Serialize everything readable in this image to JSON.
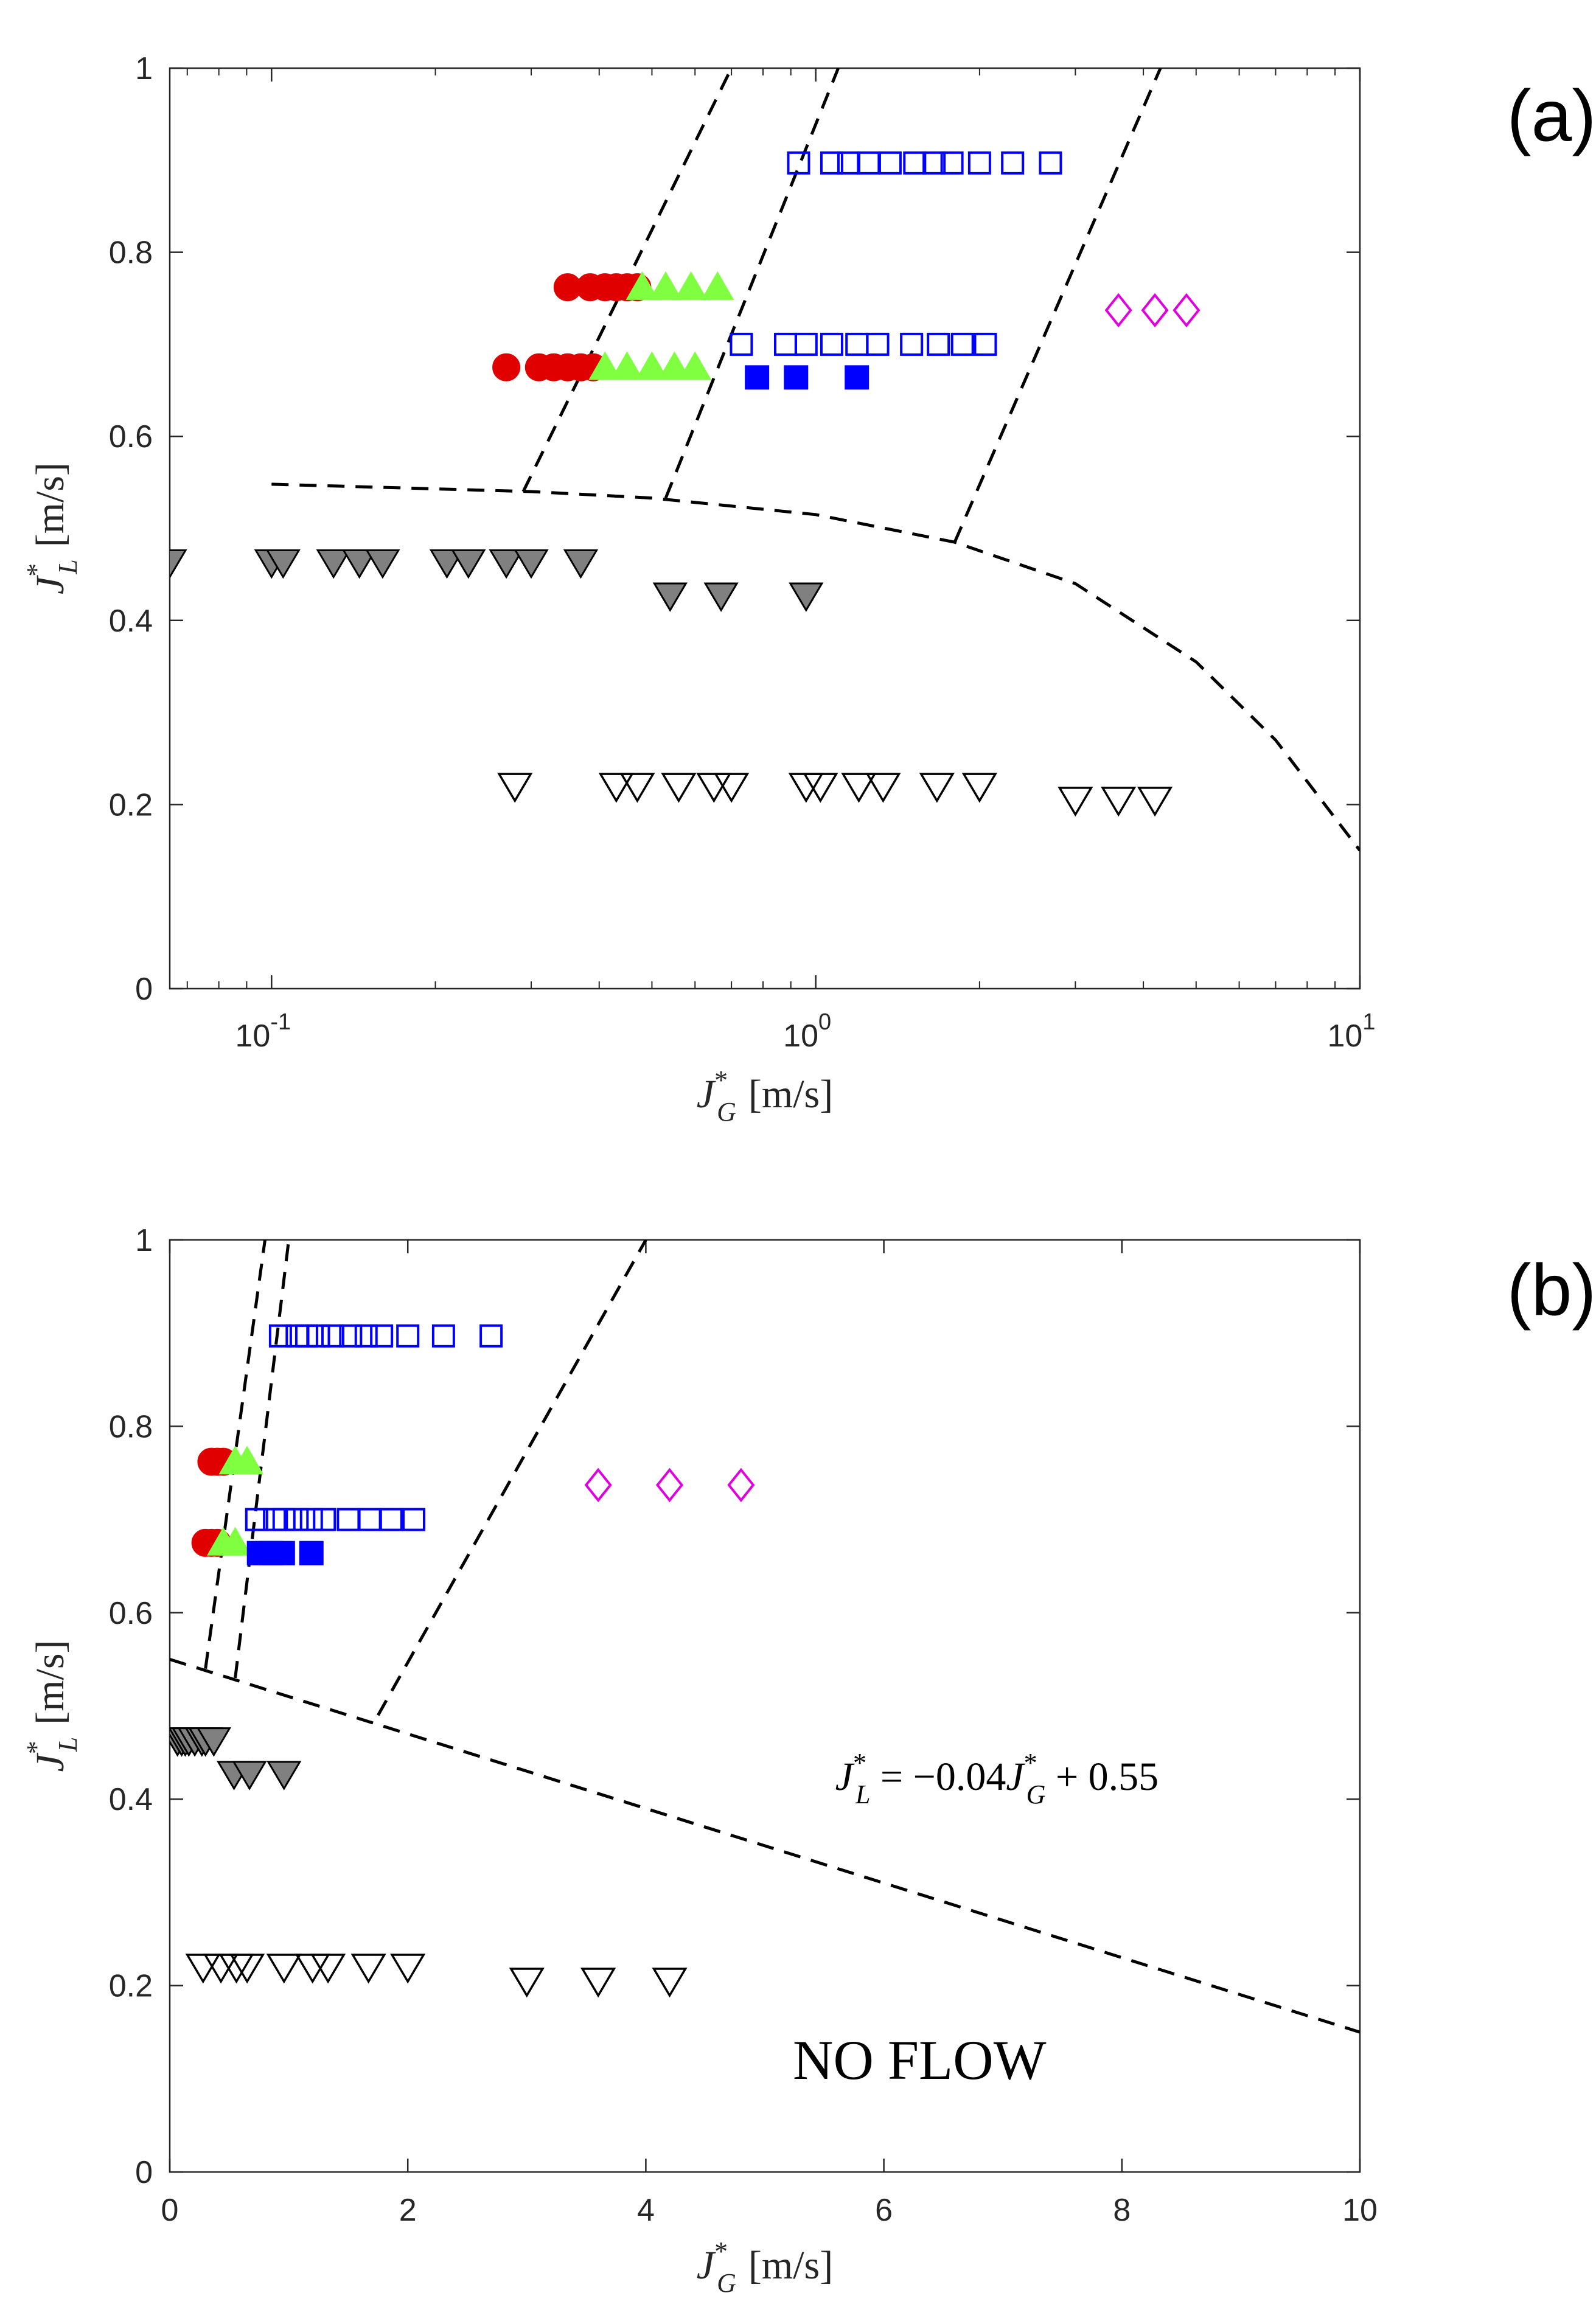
{
  "chart_data": [
    {
      "type": "scatter",
      "panel_label": "(a)",
      "xscale": "log",
      "xlim": [
        0.065,
        10
      ],
      "ylim": [
        0,
        1
      ],
      "xticks": [
        0.1,
        1,
        10
      ],
      "xtick_labels": [
        {
          "base": "10",
          "exp": "-1"
        },
        {
          "base": "10",
          "exp": "0"
        },
        {
          "base": "10",
          "exp": "1"
        }
      ],
      "yticks": [
        0,
        0.2,
        0.4,
        0.6,
        0.8,
        1
      ],
      "ytick_labels": [
        "0",
        "0.2",
        "0.4",
        "0.6",
        "0.8",
        "1"
      ],
      "xlabel": {
        "sym": "J",
        "sup": "*",
        "sub": "G",
        "unit": "[m/s]"
      },
      "ylabel": {
        "sym": "J",
        "sup": "*",
        "sub": "L",
        "unit": "[m/s]"
      },
      "series": [
        {
          "name": "red-circles",
          "marker": "circle-filled",
          "color": "#e00000",
          "points": [
            [
              0.27,
              0.675
            ],
            [
              0.31,
              0.675
            ],
            [
              0.33,
              0.675
            ],
            [
              0.35,
              0.675
            ],
            [
              0.37,
              0.675
            ],
            [
              0.39,
              0.675
            ],
            [
              0.35,
              0.762
            ],
            [
              0.385,
              0.762
            ],
            [
              0.41,
              0.762
            ],
            [
              0.43,
              0.762
            ],
            [
              0.45,
              0.762
            ],
            [
              0.47,
              0.762
            ]
          ]
        },
        {
          "name": "green-triangles",
          "marker": "triangle-up-filled",
          "color": "#7fff3f",
          "points": [
            [
              0.41,
              0.675
            ],
            [
              0.45,
              0.675
            ],
            [
              0.5,
              0.675
            ],
            [
              0.55,
              0.675
            ],
            [
              0.6,
              0.675
            ],
            [
              0.48,
              0.762
            ],
            [
              0.53,
              0.762
            ],
            [
              0.59,
              0.762
            ],
            [
              0.66,
              0.762
            ]
          ]
        },
        {
          "name": "blue-open-squares",
          "marker": "square-open",
          "color": "#0000ff",
          "points": [
            [
              0.93,
              0.897
            ],
            [
              1.07,
              0.897
            ],
            [
              1.15,
              0.897
            ],
            [
              1.25,
              0.897
            ],
            [
              1.37,
              0.897
            ],
            [
              1.52,
              0.897
            ],
            [
              1.65,
              0.897
            ],
            [
              1.78,
              0.897
            ],
            [
              2.0,
              0.897
            ],
            [
              2.3,
              0.897
            ],
            [
              2.7,
              0.897
            ],
            [
              0.73,
              0.7
            ],
            [
              0.88,
              0.7
            ],
            [
              0.96,
              0.7
            ],
            [
              1.07,
              0.7
            ],
            [
              1.19,
              0.7
            ],
            [
              1.3,
              0.7
            ],
            [
              1.5,
              0.7
            ],
            [
              1.68,
              0.7
            ],
            [
              1.86,
              0.7
            ],
            [
              2.05,
              0.7
            ]
          ]
        },
        {
          "name": "blue-filled-squares",
          "marker": "square-filled",
          "color": "#0000ff",
          "points": [
            [
              0.78,
              0.664
            ],
            [
              0.92,
              0.664
            ],
            [
              1.19,
              0.664
            ]
          ]
        },
        {
          "name": "magenta-diamonds",
          "marker": "diamond-open",
          "color": "#e000e0",
          "points": [
            [
              3.6,
              0.737
            ],
            [
              4.2,
              0.737
            ],
            [
              4.8,
              0.737
            ]
          ]
        },
        {
          "name": "gray-triangles",
          "marker": "triangle-down-filled",
          "color": "#808080",
          "points": [
            [
              0.065,
              0.463
            ],
            [
              0.1,
              0.463
            ],
            [
              0.105,
              0.463
            ],
            [
              0.13,
              0.463
            ],
            [
              0.145,
              0.463
            ],
            [
              0.16,
              0.463
            ],
            [
              0.21,
              0.463
            ],
            [
              0.23,
              0.463
            ],
            [
              0.27,
              0.463
            ],
            [
              0.3,
              0.463
            ],
            [
              0.37,
              0.463
            ],
            [
              0.54,
              0.427
            ],
            [
              0.67,
              0.427
            ],
            [
              0.96,
              0.427
            ]
          ]
        },
        {
          "name": "open-triangles",
          "marker": "triangle-down-open",
          "color": "#000000",
          "points": [
            [
              0.28,
              0.22
            ],
            [
              0.43,
              0.22
            ],
            [
              0.47,
              0.22
            ],
            [
              0.56,
              0.22
            ],
            [
              0.65,
              0.22
            ],
            [
              0.7,
              0.22
            ],
            [
              0.96,
              0.22
            ],
            [
              1.02,
              0.22
            ],
            [
              1.2,
              0.22
            ],
            [
              1.33,
              0.22
            ],
            [
              1.67,
              0.22
            ],
            [
              2.0,
              0.22
            ],
            [
              3.0,
              0.205
            ],
            [
              3.6,
              0.205
            ],
            [
              4.2,
              0.205
            ]
          ]
        }
      ],
      "lines": [
        {
          "name": "no-flow-boundary",
          "style": "dashed",
          "points": [
            [
              0.1,
              0.548
            ],
            [
              0.3,
              0.54
            ],
            [
              0.5,
              0.533
            ],
            [
              1,
              0.515
            ],
            [
              1.8,
              0.485
            ],
            [
              3,
              0.44
            ],
            [
              5,
              0.355
            ],
            [
              7,
              0.27
            ],
            [
              10,
              0.15
            ]
          ]
        },
        {
          "name": "regime-boundary-1",
          "style": "dashed",
          "points": [
            [
              0.29,
              0.54
            ],
            [
              0.7,
              1.0
            ]
          ]
        },
        {
          "name": "regime-boundary-2",
          "style": "dashed",
          "points": [
            [
              0.53,
              0.533
            ],
            [
              1.1,
              1.0
            ]
          ]
        },
        {
          "name": "regime-boundary-3",
          "style": "dashed",
          "points": [
            [
              1.8,
              0.485
            ],
            [
              4.3,
              1.0
            ]
          ]
        }
      ]
    },
    {
      "type": "scatter",
      "panel_label": "(b)",
      "xscale": "linear",
      "xlim": [
        0,
        10
      ],
      "ylim": [
        0,
        1
      ],
      "xticks": [
        0,
        2,
        4,
        6,
        8,
        10
      ],
      "xtick_labels": [
        "0",
        "2",
        "4",
        "6",
        "8",
        "10"
      ],
      "yticks": [
        0,
        0.2,
        0.4,
        0.6,
        0.8,
        1
      ],
      "ytick_labels": [
        "0",
        "0.2",
        "0.4",
        "0.6",
        "0.8",
        "1"
      ],
      "xlabel": {
        "sym": "J",
        "sup": "*",
        "sub": "G",
        "unit": "[m/s]"
      },
      "ylabel": {
        "sym": "J",
        "sup": "*",
        "sub": "L",
        "unit": "[m/s]"
      },
      "annotations": [
        {
          "name": "fit-equation",
          "text": {
            "lhs_sym": "J",
            "lhs_sub": "L",
            "mid": " = −0.04",
            "rhs_sym": "J",
            "rhs_sub": "G",
            "tail": " + 0.55",
            "sup": "*"
          },
          "x": 6.95,
          "y": 0.41
        },
        {
          "name": "no-flow-label",
          "text": "NO FLOW",
          "x": 6.3,
          "y": 0.1
        }
      ],
      "series": [
        {
          "name": "red-circles",
          "marker": "circle-filled",
          "color": "#e00000",
          "points": [
            [
              0.3,
              0.675
            ],
            [
              0.35,
              0.675
            ],
            [
              0.4,
              0.675
            ],
            [
              0.35,
              0.762
            ],
            [
              0.4,
              0.762
            ],
            [
              0.45,
              0.762
            ]
          ]
        },
        {
          "name": "green-triangles",
          "marker": "triangle-up-filled",
          "color": "#7fff3f",
          "points": [
            [
              0.45,
              0.675
            ],
            [
              0.55,
              0.675
            ],
            [
              0.55,
              0.762
            ],
            [
              0.65,
              0.762
            ]
          ]
        },
        {
          "name": "blue-open-squares",
          "marker": "square-open",
          "color": "#0000ff",
          "points": [
            [
              0.93,
              0.897
            ],
            [
              1.07,
              0.897
            ],
            [
              1.15,
              0.897
            ],
            [
              1.25,
              0.897
            ],
            [
              1.37,
              0.897
            ],
            [
              1.52,
              0.897
            ],
            [
              1.65,
              0.897
            ],
            [
              1.78,
              0.897
            ],
            [
              2.0,
              0.897
            ],
            [
              2.3,
              0.897
            ],
            [
              2.7,
              0.897
            ],
            [
              0.73,
              0.7
            ],
            [
              0.88,
              0.7
            ],
            [
              0.96,
              0.7
            ],
            [
              1.07,
              0.7
            ],
            [
              1.19,
              0.7
            ],
            [
              1.3,
              0.7
            ],
            [
              1.5,
              0.7
            ],
            [
              1.68,
              0.7
            ],
            [
              1.86,
              0.7
            ],
            [
              2.05,
              0.7
            ]
          ]
        },
        {
          "name": "blue-filled-squares",
          "marker": "square-filled",
          "color": "#0000ff",
          "points": [
            [
              0.75,
              0.664
            ],
            [
              0.85,
              0.664
            ],
            [
              0.95,
              0.664
            ],
            [
              1.19,
              0.664
            ]
          ]
        },
        {
          "name": "magenta-diamonds",
          "marker": "diamond-open",
          "color": "#e000e0",
          "points": [
            [
              3.6,
              0.737
            ],
            [
              4.2,
              0.737
            ],
            [
              4.8,
              0.737
            ]
          ]
        },
        {
          "name": "gray-triangles",
          "marker": "triangle-down-filled",
          "color": "#808080",
          "points": [
            [
              0.065,
              0.463
            ],
            [
              0.1,
              0.463
            ],
            [
              0.13,
              0.463
            ],
            [
              0.16,
              0.463
            ],
            [
              0.21,
              0.463
            ],
            [
              0.27,
              0.463
            ],
            [
              0.3,
              0.463
            ],
            [
              0.37,
              0.463
            ],
            [
              0.54,
              0.427
            ],
            [
              0.67,
              0.427
            ],
            [
              0.96,
              0.427
            ]
          ]
        },
        {
          "name": "open-triangles",
          "marker": "triangle-down-open",
          "color": "#000000",
          "points": [
            [
              0.28,
              0.22
            ],
            [
              0.43,
              0.22
            ],
            [
              0.56,
              0.22
            ],
            [
              0.65,
              0.22
            ],
            [
              0.96,
              0.22
            ],
            [
              1.2,
              0.22
            ],
            [
              1.33,
              0.22
            ],
            [
              1.67,
              0.22
            ],
            [
              2.0,
              0.22
            ],
            [
              3.0,
              0.205
            ],
            [
              3.6,
              0.205
            ],
            [
              4.2,
              0.205
            ]
          ]
        }
      ],
      "lines": [
        {
          "name": "no-flow-boundary",
          "style": "dashed",
          "points": [
            [
              0,
              0.55
            ],
            [
              10,
              0.15
            ]
          ]
        },
        {
          "name": "regime-boundary-1",
          "style": "dashed",
          "points": [
            [
              0.3,
              0.54
            ],
            [
              0.8,
              1.0
            ]
          ]
        },
        {
          "name": "regime-boundary-2",
          "style": "dashed",
          "points": [
            [
              0.55,
              0.53
            ],
            [
              1.0,
              1.0
            ]
          ]
        },
        {
          "name": "regime-boundary-3",
          "style": "dashed",
          "points": [
            [
              1.75,
              0.49
            ],
            [
              4.0,
              1.0
            ]
          ]
        }
      ]
    }
  ]
}
